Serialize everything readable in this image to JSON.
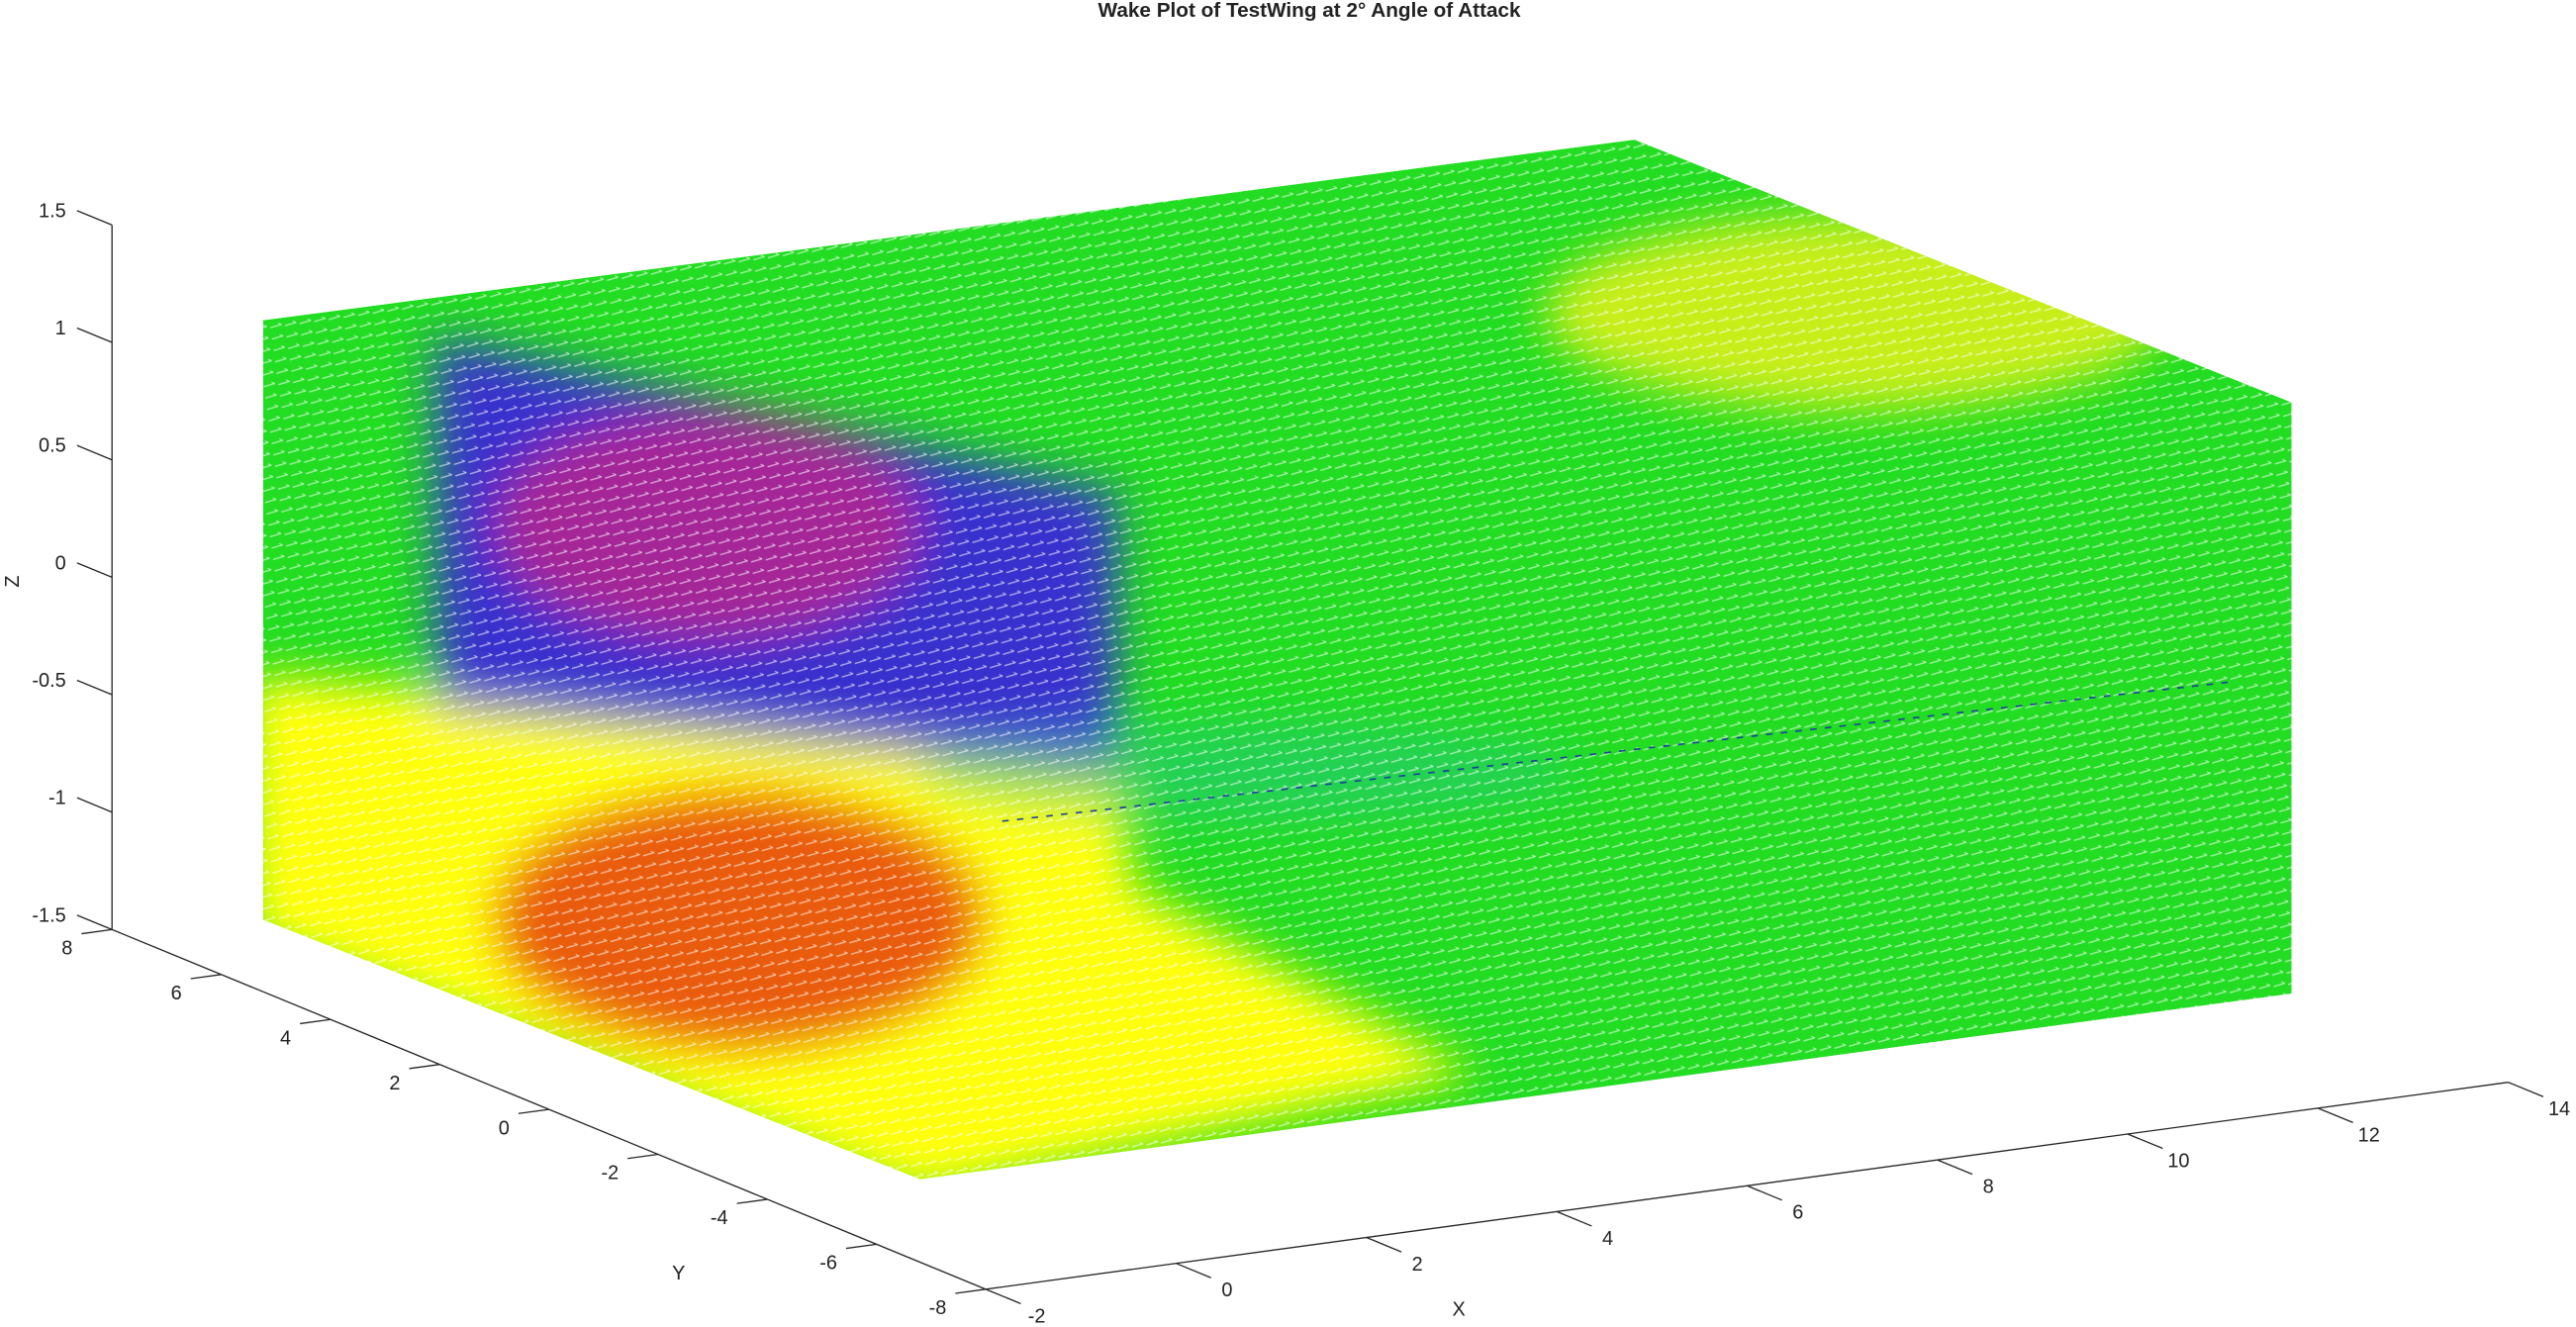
{
  "chart_data": {
    "type": "quiver3",
    "title": "Wake Plot of TestWing at 2° Angle of Attack",
    "xlabel": "X",
    "ylabel": "Y",
    "zlabel": "Z",
    "xlim": [
      -2,
      14
    ],
    "ylim": [
      -8,
      8
    ],
    "zlim": [
      -1.5,
      1.5
    ],
    "xticks": [
      -2,
      0,
      2,
      4,
      6,
      8,
      10,
      12,
      14
    ],
    "yticks": [
      -8,
      -6,
      -4,
      -2,
      0,
      2,
      4,
      6,
      8
    ],
    "zticks": [
      -1.5,
      -1,
      -0.5,
      0,
      0.5,
      1,
      1.5
    ]
  }
}
